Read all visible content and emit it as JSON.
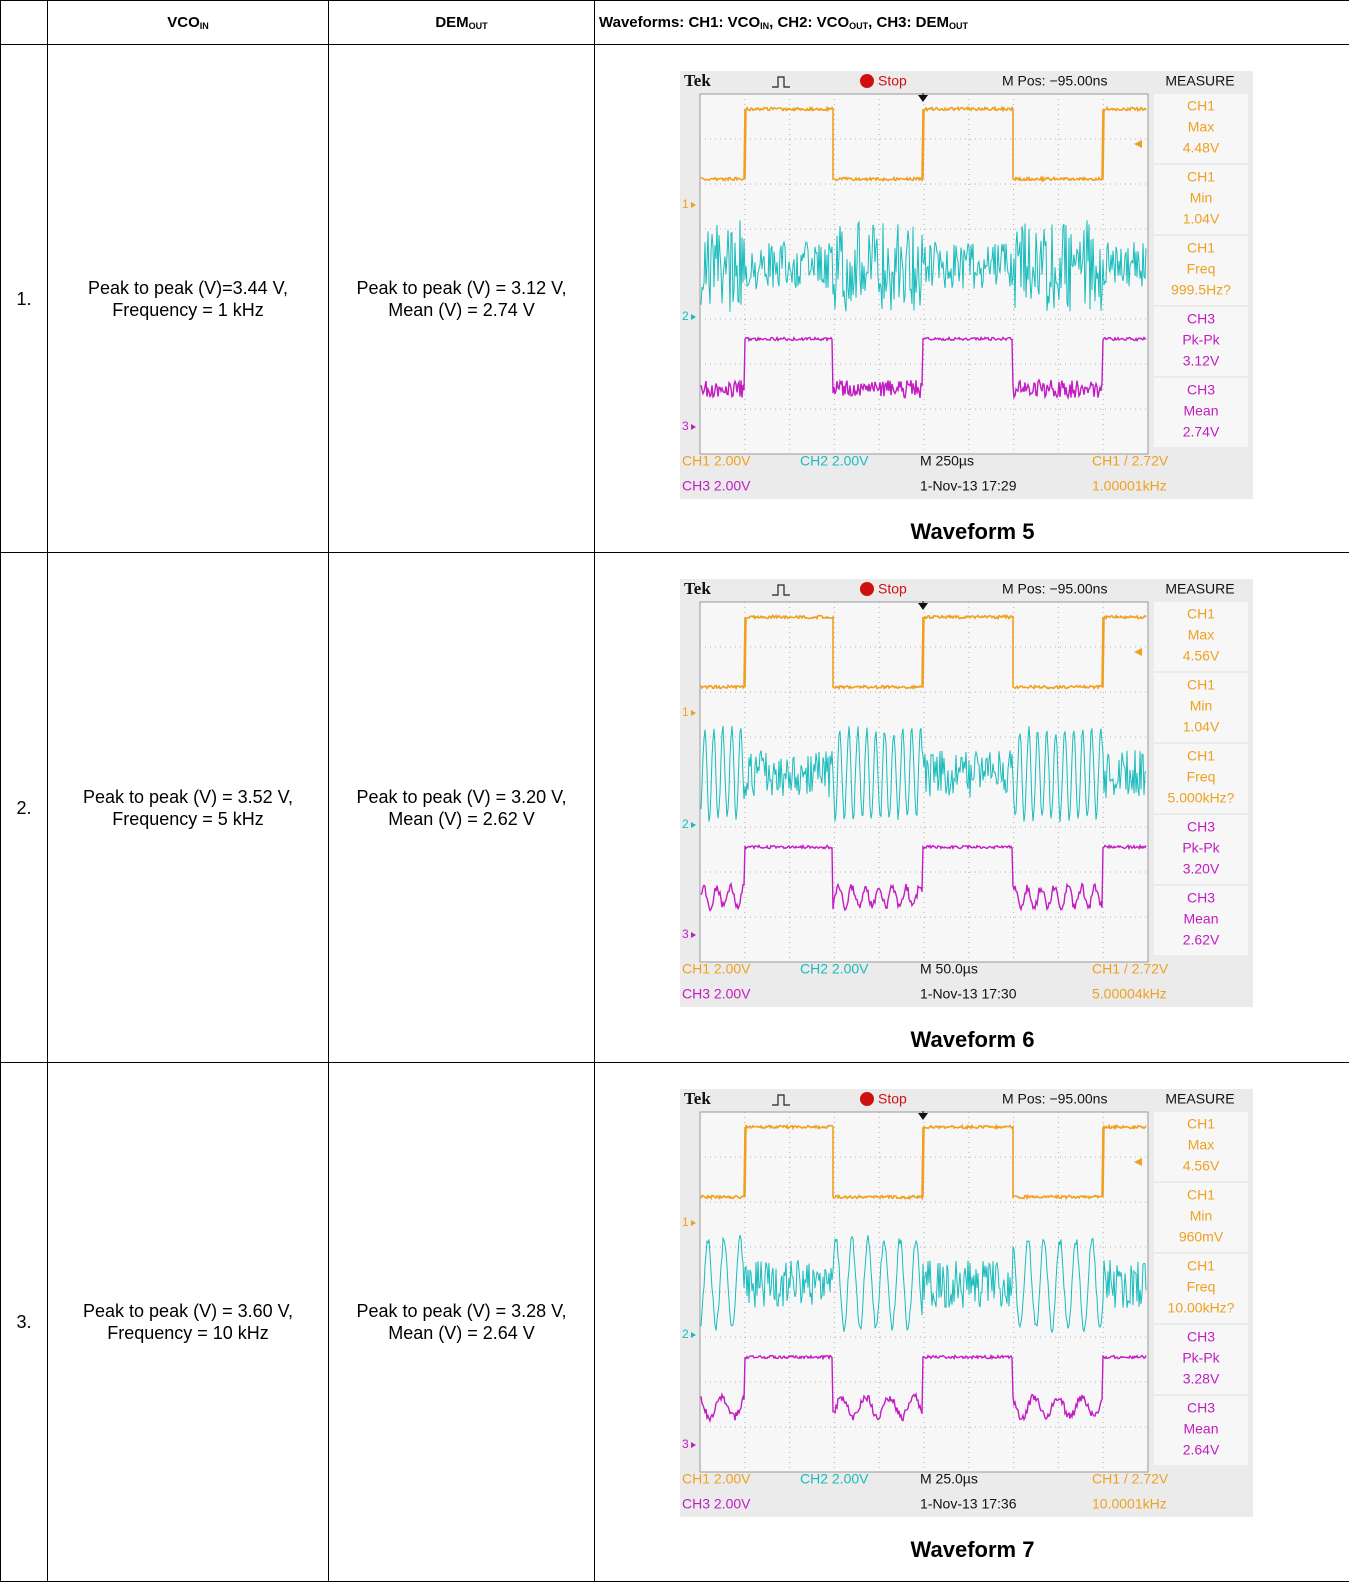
{
  "header": {
    "vco_in": [
      "VCO",
      "IN"
    ],
    "dem_out": [
      "DEM",
      "OUT"
    ],
    "waveforms": [
      [
        "Waveforms: CH1: VCO",
        "IN"
      ],
      [
        ", CH2: VCO",
        "OUT"
      ],
      [
        ", CH3: DEM",
        "OUT"
      ]
    ]
  },
  "rows": [
    {
      "number": "1.",
      "vco_in": [
        "Peak to peak (V)=3.44 V,",
        "Frequency = 1 kHz"
      ],
      "dem_out": [
        "Peak to peak (V) = 3.12 V,",
        "Mean (V) = 2.74 V"
      ],
      "scope": {
        "brand": "Tek",
        "state": "Stop",
        "position": "M Pos: −95.00ns",
        "measure_title": "MEASURE",
        "measurements": [
          [
            "CH1",
            "Max",
            "4.48V"
          ],
          [
            "CH1",
            "Min",
            "1.04V"
          ],
          [
            "CH1",
            "Freq",
            "999.5Hz?"
          ],
          [
            "CH3",
            "Pk-Pk",
            "3.12V"
          ],
          [
            "CH3",
            "Mean",
            "2.74V"
          ]
        ],
        "markers": [
          "1",
          "2",
          "3"
        ],
        "footer": {
          "ch1": "CH1  2.00V",
          "ch2": "CH2  2.00V",
          "timebase": "M 250µs",
          "trigger": "CH1 / 2.72V",
          "ch3": "CH3  2.00V",
          "date": "1-Nov-13 17:29",
          "frequency": "1.00001kHz"
        }
      },
      "caption": "Waveform 5"
    },
    {
      "number": "2.",
      "vco_in": [
        "Peak to peak (V) = 3.52 V,",
        "Frequency = 5 kHz"
      ],
      "dem_out": [
        "Peak to peak (V) = 3.20 V,",
        "Mean (V) = 2.62 V"
      ],
      "scope": {
        "brand": "Tek",
        "state": "Stop",
        "position": "M Pos: −95.00ns",
        "measure_title": "MEASURE",
        "measurements": [
          [
            "CH1",
            "Max",
            "4.56V"
          ],
          [
            "CH1",
            "Min",
            "1.04V"
          ],
          [
            "CH1",
            "Freq",
            "5.000kHz?"
          ],
          [
            "CH3",
            "Pk-Pk",
            "3.20V"
          ],
          [
            "CH3",
            "Mean",
            "2.62V"
          ]
        ],
        "markers": [
          "1",
          "2",
          "3"
        ],
        "footer": {
          "ch1": "CH1  2.00V",
          "ch2": "CH2  2.00V",
          "timebase": "M 50.0µs",
          "trigger": "CH1 / 2.72V",
          "ch3": "CH3  2.00V",
          "date": "1-Nov-13 17:30",
          "frequency": "5.00004kHz"
        }
      },
      "caption": "Waveform 6"
    },
    {
      "number": "3.",
      "vco_in": [
        "Peak to peak (V) = 3.60 V,",
        "Frequency = 10 kHz"
      ],
      "dem_out": [
        "Peak to peak (V) = 3.28 V,",
        "Mean (V) = 2.64 V"
      ],
      "scope": {
        "brand": "Tek",
        "state": "Stop",
        "position": "M Pos: −95.00ns",
        "measure_title": "MEASURE",
        "measurements": [
          [
            "CH1",
            "Max",
            "4.56V"
          ],
          [
            "CH1",
            "Min",
            "960mV"
          ],
          [
            "CH1",
            "Freq",
            "10.00kHz?"
          ],
          [
            "CH3",
            "Pk-Pk",
            "3.28V"
          ],
          [
            "CH3",
            "Mean",
            "2.64V"
          ]
        ],
        "markers": [
          "1",
          "2",
          "3"
        ],
        "footer": {
          "ch1": "CH1  2.00V",
          "ch2": "CH2  2.00V",
          "timebase": "M 25.0µs",
          "trigger": "CH1 / 2.72V",
          "ch3": "CH3  2.00V",
          "date": "1-Nov-13 17:36",
          "frequency": "10.0001kHz"
        }
      },
      "caption": "Waveform 7"
    }
  ]
}
